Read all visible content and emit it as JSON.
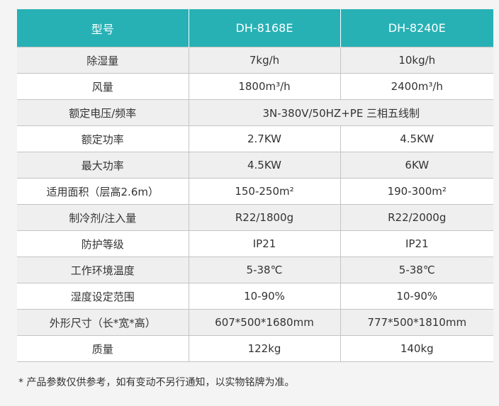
{
  "header": {
    "label": "型号",
    "model_a": "DH-8168E",
    "model_b": "DH-8240E"
  },
  "rows": [
    {
      "label": "除湿量",
      "a": "7kg/h",
      "b": "10kg/h"
    },
    {
      "label": "风量",
      "a": "1800m³/h",
      "b": "2400m³/h"
    },
    {
      "label": "额定电压/频率",
      "merged": "3N-380V/50HZ+PE 三相五线制"
    },
    {
      "label": "额定功率",
      "a": "2.7KW",
      "b": "4.5KW"
    },
    {
      "label": "最大功率",
      "a": "4.5KW",
      "b": "6KW"
    },
    {
      "label": "适用面积（层高2.6m）",
      "a": "150-250m²",
      "b": "190-300m²"
    },
    {
      "label": "制冷剂/注入量",
      "a": "R22/1800g",
      "b": "R22/2000g"
    },
    {
      "label": "防护等级",
      "a": "IP21",
      "b": "IP21"
    },
    {
      "label": "工作环境温度",
      "a": "5-38℃",
      "b": "5-38℃"
    },
    {
      "label": "湿度设定范围",
      "a": "10-90%",
      "b": "10-90%"
    },
    {
      "label": "外形尺寸（长*宽*高）",
      "a": "607*500*1680mm",
      "b": "777*500*1810mm"
    },
    {
      "label": "质量",
      "a": "122kg",
      "b": "140kg"
    }
  ],
  "footnote": "* 产品参数仅供参考，如有变动不另行通知，以实物铭牌为准。",
  "colors": {
    "header_bg": "#27b1b5",
    "header_text": "#ffffff",
    "row_odd": "#efefef",
    "row_even": "#ffffff",
    "border": "#c4c4c4"
  }
}
